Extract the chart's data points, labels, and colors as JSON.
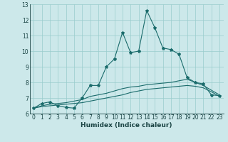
{
  "xlabel": "Humidex (Indice chaleur)",
  "bg_color": "#cce8ea",
  "grid_color": "#99cccc",
  "line_color": "#1a6b6b",
  "xlim": [
    -0.5,
    23.5
  ],
  "ylim": [
    6,
    13
  ],
  "yticks": [
    6,
    7,
    8,
    9,
    10,
    11,
    12,
    13
  ],
  "xticks": [
    0,
    1,
    2,
    3,
    4,
    5,
    6,
    7,
    8,
    9,
    10,
    11,
    12,
    13,
    14,
    15,
    16,
    17,
    18,
    19,
    20,
    21,
    22,
    23
  ],
  "line1_x": [
    0,
    1,
    2,
    3,
    4,
    5,
    6,
    7,
    8,
    9,
    10,
    11,
    12,
    13,
    14,
    15,
    16,
    17,
    18,
    19,
    20,
    21,
    22,
    23
  ],
  "line1_y": [
    6.35,
    6.65,
    6.75,
    6.5,
    6.4,
    6.35,
    7.0,
    7.8,
    7.8,
    9.0,
    9.5,
    11.2,
    9.9,
    10.0,
    12.6,
    11.5,
    10.2,
    10.1,
    9.8,
    8.3,
    8.0,
    7.9,
    7.2,
    7.15
  ],
  "line2_x": [
    0,
    1,
    2,
    3,
    4,
    5,
    6,
    7,
    8,
    9,
    10,
    11,
    12,
    13,
    14,
    15,
    16,
    17,
    18,
    19,
    20,
    21,
    22,
    23
  ],
  "line2_y": [
    6.35,
    6.5,
    6.6,
    6.65,
    6.7,
    6.8,
    6.9,
    7.1,
    7.2,
    7.3,
    7.45,
    7.6,
    7.7,
    7.75,
    7.85,
    7.9,
    7.95,
    8.0,
    8.1,
    8.2,
    8.0,
    7.8,
    7.5,
    7.2
  ],
  "line3_x": [
    0,
    1,
    2,
    3,
    4,
    5,
    6,
    7,
    8,
    9,
    10,
    11,
    12,
    13,
    14,
    15,
    16,
    17,
    18,
    19,
    20,
    21,
    22,
    23
  ],
  "line3_y": [
    6.35,
    6.45,
    6.5,
    6.55,
    6.6,
    6.65,
    6.7,
    6.8,
    6.9,
    7.0,
    7.1,
    7.2,
    7.35,
    7.45,
    7.55,
    7.6,
    7.65,
    7.7,
    7.75,
    7.8,
    7.75,
    7.65,
    7.4,
    7.1
  ]
}
